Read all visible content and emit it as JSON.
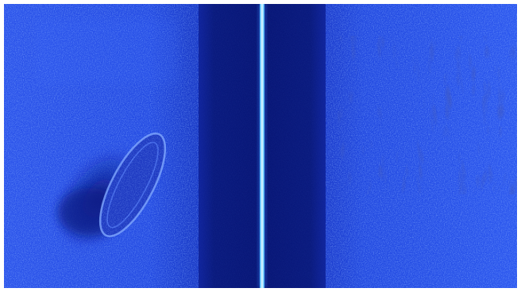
{
  "image": {
    "kind": "side-scan sonar image",
    "palette": {
      "background": "#ffffff",
      "seabed_bright": "#3b68ff",
      "seabed_mid": "#2048e0",
      "seabed_dark": "#1530b8",
      "water_column": "#0d1f9a",
      "water_column_dark": "#081670",
      "nadir_line": "#bfe9ff",
      "nadir_glow": "#6fd0ff",
      "shadow": "#0c1a86",
      "highlight": "#8fb3ff"
    },
    "icons": [
      "shipwreck-target",
      "sand-ripples",
      "nadir-track"
    ]
  }
}
